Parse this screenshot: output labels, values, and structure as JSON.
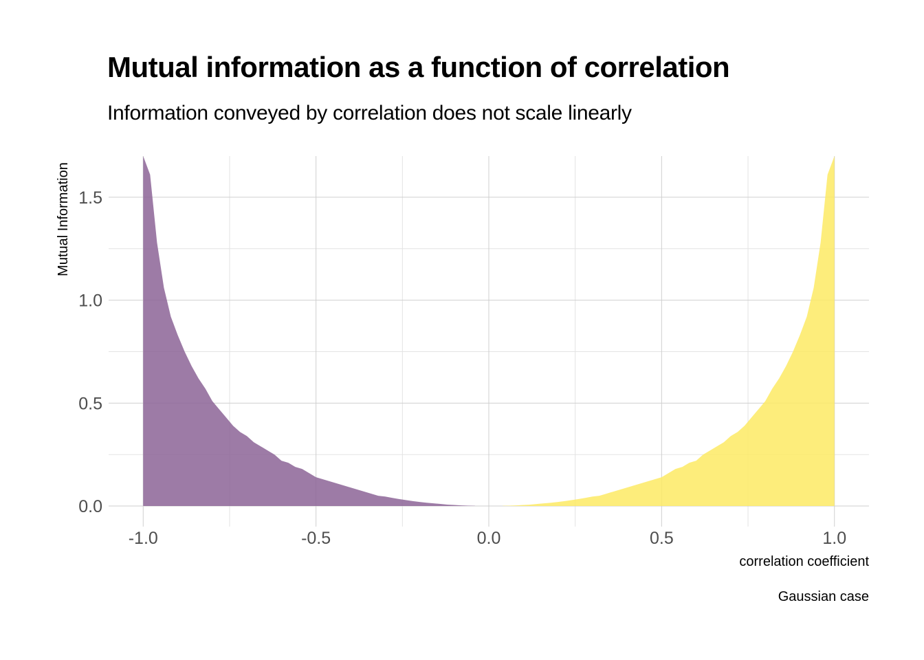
{
  "chart_data": {
    "type": "area",
    "title": "Mutual information as a function of correlation",
    "subtitle": "Information conveyed by correlation does not scale linearly",
    "xlabel": "correlation coefficient",
    "ylabel": "Mutual Information",
    "caption": "Gaussian case",
    "xlim": [
      -1.1,
      1.1
    ],
    "ylim": [
      -0.1,
      1.7
    ],
    "x_ticks": [
      -1.0,
      -0.5,
      0.0,
      0.5,
      1.0
    ],
    "x_tick_labels": [
      "-1.0",
      "-0.5",
      "0.0",
      "0.5",
      "1.0"
    ],
    "y_ticks": [
      0.0,
      0.5,
      1.0,
      1.5
    ],
    "y_tick_labels": [
      "0.0",
      "0.5",
      "1.0",
      "1.5"
    ],
    "grid": true,
    "series": [
      {
        "color": "#8c6496",
        "x": [
          -1.0,
          -0.98,
          -0.96,
          -0.94,
          -0.92,
          -0.9,
          -0.88,
          -0.86,
          -0.84,
          -0.82,
          -0.8,
          -0.78,
          -0.76,
          -0.74,
          -0.72,
          -0.7,
          -0.68,
          -0.66,
          -0.64,
          -0.62,
          -0.6,
          -0.58,
          -0.56,
          -0.54,
          -0.52,
          -0.5,
          -0.48,
          -0.46,
          -0.44,
          -0.42,
          -0.4,
          -0.38,
          -0.36,
          -0.34,
          -0.32,
          -0.3,
          -0.28,
          -0.26,
          -0.24,
          -0.22,
          -0.2,
          -0.18,
          -0.16,
          -0.14,
          -0.12,
          -0.1,
          -0.08,
          -0.06,
          -0.04
        ],
        "y": [
          1.7,
          1.61,
          1.28,
          1.06,
          0.92,
          0.83,
          0.75,
          0.68,
          0.62,
          0.57,
          0.51,
          0.47,
          0.43,
          0.39,
          0.36,
          0.34,
          0.31,
          0.29,
          0.27,
          0.25,
          0.22,
          0.21,
          0.19,
          0.18,
          0.16,
          0.14,
          0.13,
          0.12,
          0.11,
          0.1,
          0.09,
          0.08,
          0.07,
          0.06,
          0.05,
          0.046,
          0.04,
          0.034,
          0.029,
          0.024,
          0.02,
          0.016,
          0.013,
          0.01,
          0.007,
          0.005,
          0.003,
          0.002,
          0.001
        ]
      },
      {
        "color": "#fdea64",
        "x": [
          0.04,
          0.06,
          0.08,
          0.1,
          0.12,
          0.14,
          0.16,
          0.18,
          0.2,
          0.22,
          0.24,
          0.26,
          0.28,
          0.3,
          0.32,
          0.34,
          0.36,
          0.38,
          0.4,
          0.42,
          0.44,
          0.46,
          0.48,
          0.5,
          0.52,
          0.54,
          0.56,
          0.58,
          0.6,
          0.62,
          0.64,
          0.66,
          0.68,
          0.7,
          0.72,
          0.74,
          0.76,
          0.78,
          0.8,
          0.82,
          0.84,
          0.86,
          0.88,
          0.9,
          0.92,
          0.94,
          0.96,
          0.98,
          1.0
        ],
        "y": [
          0.001,
          0.002,
          0.003,
          0.005,
          0.007,
          0.01,
          0.013,
          0.016,
          0.02,
          0.024,
          0.029,
          0.034,
          0.04,
          0.046,
          0.05,
          0.06,
          0.07,
          0.08,
          0.09,
          0.1,
          0.11,
          0.12,
          0.13,
          0.14,
          0.16,
          0.18,
          0.19,
          0.21,
          0.22,
          0.25,
          0.27,
          0.29,
          0.31,
          0.34,
          0.36,
          0.39,
          0.43,
          0.47,
          0.51,
          0.57,
          0.62,
          0.68,
          0.75,
          0.83,
          0.92,
          1.06,
          1.28,
          1.61,
          1.7
        ]
      }
    ]
  }
}
